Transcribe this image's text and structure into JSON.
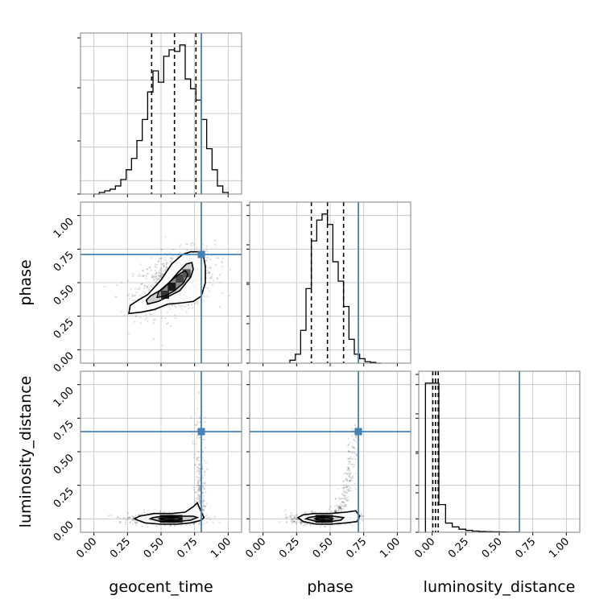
{
  "chart_data": {
    "type": "corner",
    "parameters": [
      "geocent_time",
      "phase",
      "luminosity_distance"
    ],
    "axis_labels": {
      "x": [
        "geocent_time",
        "phase",
        "luminosity_distance"
      ],
      "y": [
        "",
        "phase",
        "luminosity_distance"
      ]
    },
    "tick_labels": [
      "0.00",
      "0.25",
      "0.50",
      "0.75",
      "1.00"
    ],
    "tick_values": [
      0.0,
      0.25,
      0.5,
      0.75,
      1.0
    ],
    "ranges": {
      "geocent_time": [
        -0.1,
        1.1
      ],
      "phase": [
        -0.1,
        1.1
      ],
      "luminosity_distance": [
        -0.1,
        1.1
      ]
    },
    "truths": {
      "geocent_time": 0.8,
      "phase": 0.71,
      "luminosity_distance": 0.65
    },
    "quantiles": {
      "geocent_time": [
        0.43,
        0.6,
        0.76
      ],
      "phase": [
        0.36,
        0.48,
        0.6
      ],
      "luminosity_distance": [
        0.005,
        0.025,
        0.045
      ]
    },
    "histograms": {
      "geocent_time": {
        "bin_edges": [
          0.0,
          0.04,
          0.08,
          0.12,
          0.16,
          0.2,
          0.24,
          0.28,
          0.32,
          0.36,
          0.4,
          0.44,
          0.48,
          0.52,
          0.56,
          0.6,
          0.64,
          0.68,
          0.72,
          0.76,
          0.8,
          0.84,
          0.88,
          0.92,
          0.96,
          1.0
        ],
        "heights": [
          0.0,
          0.01,
          0.02,
          0.03,
          0.05,
          0.09,
          0.15,
          0.22,
          0.33,
          0.46,
          0.63,
          0.76,
          0.69,
          0.85,
          0.89,
          0.88,
          0.92,
          0.71,
          0.65,
          0.58,
          0.46,
          0.28,
          0.15,
          0.05,
          0.01
        ]
      },
      "phase": {
        "bin_edges": [
          0.2,
          0.24,
          0.28,
          0.32,
          0.36,
          0.4,
          0.44,
          0.48,
          0.52,
          0.56,
          0.6,
          0.64,
          0.68,
          0.72,
          0.76,
          0.8,
          0.84,
          0.88
        ],
        "heights": [
          0.02,
          0.06,
          0.22,
          0.5,
          0.82,
          0.96,
          1.0,
          0.93,
          0.68,
          0.55,
          0.38,
          0.16,
          0.06,
          0.03,
          0.01,
          0.005,
          0.0
        ]
      },
      "luminosity_distance": {
        "bin_edges": [
          -0.05,
          0.0,
          0.05,
          0.1,
          0.15,
          0.2,
          0.25,
          0.3,
          0.35,
          0.4,
          0.45,
          0.5,
          0.55,
          0.6,
          0.65
        ],
        "heights": [
          0.97,
          0.97,
          0.18,
          0.06,
          0.035,
          0.02,
          0.012,
          0.008,
          0.005,
          0.004,
          0.003,
          0.002,
          0.001,
          0.001
        ]
      }
    },
    "contours_2d": {
      "phase_vs_geocent_time": {
        "outer": [
          [
            0.26,
            0.27
          ],
          [
            0.35,
            0.28
          ],
          [
            0.45,
            0.3
          ],
          [
            0.55,
            0.34
          ],
          [
            0.66,
            0.35
          ],
          [
            0.74,
            0.36
          ],
          [
            0.8,
            0.4
          ],
          [
            0.83,
            0.5
          ],
          [
            0.83,
            0.62
          ],
          [
            0.82,
            0.68
          ],
          [
            0.78,
            0.73
          ],
          [
            0.72,
            0.73
          ],
          [
            0.66,
            0.71
          ],
          [
            0.58,
            0.64
          ],
          [
            0.5,
            0.52
          ],
          [
            0.4,
            0.41
          ],
          [
            0.33,
            0.37
          ],
          [
            0.27,
            0.33
          ]
        ],
        "middle": [
          [
            0.4,
            0.34
          ],
          [
            0.48,
            0.36
          ],
          [
            0.56,
            0.4
          ],
          [
            0.64,
            0.44
          ],
          [
            0.72,
            0.54
          ],
          [
            0.74,
            0.6
          ],
          [
            0.73,
            0.65
          ],
          [
            0.69,
            0.64
          ],
          [
            0.63,
            0.58
          ],
          [
            0.56,
            0.5
          ],
          [
            0.49,
            0.44
          ],
          [
            0.42,
            0.4
          ],
          [
            0.39,
            0.37
          ]
        ],
        "inner": [
          [
            0.47,
            0.39
          ],
          [
            0.53,
            0.4
          ],
          [
            0.6,
            0.44
          ],
          [
            0.67,
            0.5
          ],
          [
            0.7,
            0.56
          ],
          [
            0.68,
            0.59
          ],
          [
            0.63,
            0.56
          ],
          [
            0.57,
            0.51
          ],
          [
            0.52,
            0.46
          ],
          [
            0.48,
            0.43
          ]
        ],
        "peaks": [
          [
            0.53,
            0.41
          ],
          [
            0.58,
            0.47
          ],
          [
            0.64,
            0.53
          ],
          [
            0.69,
            0.57
          ]
        ]
      },
      "luminosity_distance_vs_geocent_time": {
        "outer": [
          [
            0.3,
            0.0
          ],
          [
            0.38,
            -0.03
          ],
          [
            0.5,
            -0.04
          ],
          [
            0.62,
            -0.04
          ],
          [
            0.72,
            -0.03
          ],
          [
            0.8,
            -0.01
          ],
          [
            0.82,
            0.01
          ],
          [
            0.8,
            0.05
          ],
          [
            0.77,
            0.12
          ],
          [
            0.74,
            0.09
          ],
          [
            0.68,
            0.05
          ],
          [
            0.58,
            0.04
          ],
          [
            0.45,
            0.04
          ],
          [
            0.34,
            0.02
          ]
        ],
        "middle": [
          [
            0.42,
            0.0
          ],
          [
            0.5,
            -0.02
          ],
          [
            0.62,
            -0.02
          ],
          [
            0.72,
            -0.01
          ],
          [
            0.77,
            0.01
          ],
          [
            0.74,
            0.02
          ],
          [
            0.64,
            0.02
          ],
          [
            0.52,
            0.02
          ],
          [
            0.44,
            0.01
          ]
        ],
        "inner": [
          [
            0.48,
            0.0
          ],
          [
            0.55,
            -0.01
          ],
          [
            0.62,
            -0.01
          ],
          [
            0.66,
            0.0
          ],
          [
            0.62,
            0.01
          ],
          [
            0.55,
            0.01
          ]
        ],
        "peaks": [
          [
            0.52,
            0.0
          ],
          [
            0.58,
            0.0
          ],
          [
            0.63,
            0.0
          ]
        ]
      },
      "luminosity_distance_vs_phase": {
        "outer": [
          [
            0.26,
            0.01
          ],
          [
            0.3,
            -0.02
          ],
          [
            0.4,
            -0.04
          ],
          [
            0.5,
            -0.04
          ],
          [
            0.62,
            -0.03
          ],
          [
            0.7,
            -0.02
          ],
          [
            0.72,
            0.02
          ],
          [
            0.69,
            0.06
          ],
          [
            0.62,
            0.05
          ],
          [
            0.5,
            0.04
          ],
          [
            0.38,
            0.04
          ],
          [
            0.3,
            0.03
          ]
        ],
        "middle": [
          [
            0.32,
            0.0
          ],
          [
            0.4,
            -0.02
          ],
          [
            0.5,
            -0.02
          ],
          [
            0.58,
            -0.01
          ],
          [
            0.6,
            0.01
          ],
          [
            0.52,
            0.02
          ],
          [
            0.4,
            0.02
          ],
          [
            0.34,
            0.01
          ]
        ],
        "inner": [
          [
            0.38,
            0.0
          ],
          [
            0.44,
            -0.01
          ],
          [
            0.5,
            -0.01
          ],
          [
            0.52,
            0.0
          ],
          [
            0.48,
            0.01
          ],
          [
            0.42,
            0.01
          ]
        ],
        "peaks": [
          [
            0.42,
            0.0
          ],
          [
            0.46,
            0.0
          ],
          [
            0.49,
            0.0
          ]
        ]
      }
    },
    "colors": {
      "truth": "#4682b4",
      "contour": "#000000",
      "grid": "#bfbfbf",
      "scatter": "#000000",
      "frame": "#808080"
    },
    "grid": true
  }
}
